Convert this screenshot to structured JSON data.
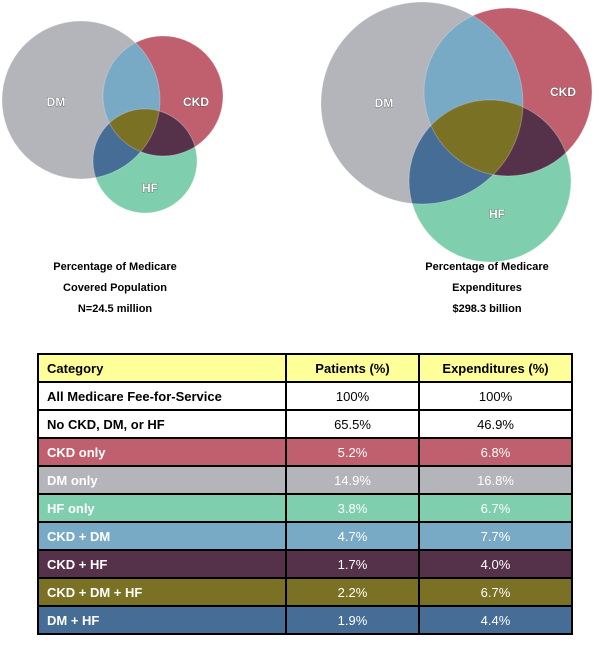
{
  "left_venn": {
    "labels": {
      "dm": "DM",
      "ckd": "CKD",
      "hf": "HF"
    },
    "caption": [
      "Percentage of Medicare",
      "Covered Population",
      "N=24.5 million"
    ]
  },
  "right_venn": {
    "labels": {
      "dm": "DM",
      "ckd": "CKD",
      "hf": "HF"
    },
    "caption": [
      "Percentage of Medicare",
      "Expenditures",
      "$298.3 billion"
    ]
  },
  "colors": {
    "dm": "#b3b5bb",
    "ckd": "#c0606f",
    "hf": "#7fcfaf",
    "ckd_dm": "#79aac5",
    "ckd_hf": "#55324a",
    "dm_hf": "#456d95",
    "all": "#7a7124",
    "header": "#ffff99",
    "white": "#ffffff"
  },
  "table": {
    "headers": [
      "Category",
      "Patients (%)",
      "Expenditures (%)"
    ],
    "rows": [
      {
        "category": "All Medicare Fee-for-Service",
        "patients": "100%",
        "expenditures": "100%",
        "color": "#ffffff",
        "text": "#000000"
      },
      {
        "category": "No CKD, DM, or HF",
        "patients": "65.5%",
        "expenditures": "46.9%",
        "color": "#ffffff",
        "text": "#000000"
      },
      {
        "category": "CKD only",
        "patients": "5.2%",
        "expenditures": "6.8%",
        "color": "#c0606f",
        "text": "#ffffff"
      },
      {
        "category": "DM only",
        "patients": "14.9%",
        "expenditures": "16.8%",
        "color": "#b3b5bb",
        "text": "#ffffff"
      },
      {
        "category": "HF only",
        "patients": "3.8%",
        "expenditures": "6.7%",
        "color": "#7fcfaf",
        "text": "#ffffff"
      },
      {
        "category": "CKD + DM",
        "patients": "4.7%",
        "expenditures": "7.7%",
        "color": "#79aac5",
        "text": "#ffffff"
      },
      {
        "category": "CKD + HF",
        "patients": "1.7%",
        "expenditures": "4.0%",
        "color": "#55324a",
        "text": "#ffffff"
      },
      {
        "category": "CKD + DM + HF",
        "patients": "2.2%",
        "expenditures": "6.7%",
        "color": "#7a7124",
        "text": "#ffffff"
      },
      {
        "category": "DM + HF",
        "patients": "1.9%",
        "expenditures": "4.4%",
        "color": "#456d95",
        "text": "#ffffff"
      }
    ]
  }
}
